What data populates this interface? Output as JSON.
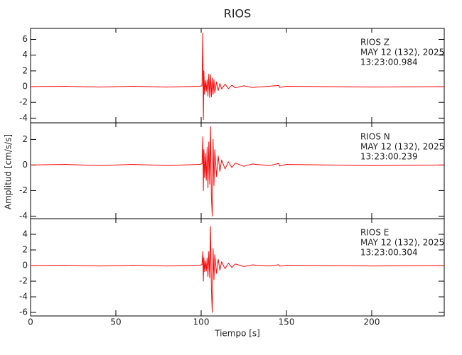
{
  "chart_data": [
    {
      "type": "line",
      "title": "RIOS",
      "annotations": [
        "RIOS   Z",
        "MAY 12 (132), 2025",
        "13:23:00.984"
      ],
      "x": [
        0,
        20,
        40,
        60,
        80,
        99,
        100.5,
        101,
        101.3,
        101.6,
        102,
        102.5,
        103,
        103.5,
        104,
        104.5,
        105,
        105.5,
        106,
        106.5,
        107,
        107.5,
        108,
        109,
        110,
        111,
        112,
        114,
        116,
        118,
        120,
        125,
        130,
        140,
        145.5,
        146,
        150,
        200,
        242.5
      ],
      "series": [
        {
          "color": "#ff0000",
          "values": [
            0,
            0.05,
            -0.05,
            0.05,
            -0.05,
            0.05,
            0.1,
            6.8,
            -4.2,
            2.0,
            -1.0,
            0.8,
            -0.6,
            0.9,
            -1.2,
            1.6,
            -1.4,
            1.5,
            -1.3,
            1.1,
            -1.0,
            0.9,
            -0.8,
            0.6,
            -0.5,
            0.4,
            -0.3,
            0.3,
            -0.25,
            0.2,
            -0.15,
            0.1,
            -0.1,
            0.05,
            0.15,
            -0.1,
            0.05,
            -0.05,
            0
          ]
        }
      ],
      "xlim": [
        0,
        242.5
      ],
      "xticks": [
        0,
        50,
        100,
        150,
        200
      ],
      "ylim": [
        -4.6,
        7.4
      ],
      "yticks": [
        -4,
        -2,
        0,
        2,
        4,
        6
      ]
    },
    {
      "type": "line",
      "ylabel": "Amplitud [cm/s/s]",
      "annotations": [
        "RIOS   N",
        "MAY 12 (132), 2025",
        "13:23:00.239"
      ],
      "x": [
        0,
        20,
        40,
        60,
        80,
        99,
        100.5,
        101,
        101.3,
        101.6,
        102,
        102.5,
        103,
        103.5,
        104,
        104.5,
        105,
        105.5,
        106,
        106.5,
        107,
        107.5,
        108,
        109,
        110,
        111,
        112,
        114,
        116,
        118,
        120,
        125,
        130,
        140,
        145.5,
        146,
        150,
        200,
        242.5
      ],
      "series": [
        {
          "color": "#ff0000",
          "values": [
            0,
            0.05,
            -0.05,
            0.05,
            -0.05,
            0.05,
            0.1,
            2.2,
            -2.0,
            1.2,
            -1.0,
            0.9,
            -1.2,
            1.4,
            -1.8,
            1.8,
            -1.5,
            3.0,
            -2.5,
            -4.0,
            2.0,
            -1.6,
            1.2,
            -0.9,
            0.7,
            -0.5,
            0.4,
            -0.3,
            0.25,
            -0.2,
            0.15,
            -0.1,
            0.08,
            -0.05,
            0.12,
            -0.08,
            0.05,
            -0.05,
            0
          ]
        }
      ],
      "xlim": [
        0,
        242.5
      ],
      "xticks": [
        0,
        50,
        100,
        150,
        200
      ],
      "ylim": [
        -4.2,
        3.3
      ],
      "yticks": [
        -4,
        -2,
        0,
        2
      ]
    },
    {
      "type": "line",
      "xlabel": "Tiempo [s]",
      "annotations": [
        "RIOS   E",
        "MAY 12 (132), 2025",
        "13:23:00.304"
      ],
      "x": [
        0,
        20,
        40,
        60,
        80,
        99,
        100.5,
        101,
        101.3,
        101.6,
        102,
        102.5,
        103,
        103.5,
        104,
        104.5,
        105,
        105.5,
        106,
        106.5,
        107,
        107.5,
        108,
        109,
        110,
        111,
        112,
        114,
        116,
        118,
        120,
        125,
        130,
        140,
        145.5,
        146,
        150,
        200,
        242.5
      ],
      "series": [
        {
          "color": "#ff0000",
          "values": [
            0,
            0.05,
            -0.05,
            0.05,
            -0.05,
            0.05,
            0.1,
            1.8,
            -2.0,
            1.0,
            -0.8,
            0.6,
            -0.7,
            1.0,
            -1.4,
            1.8,
            -1.6,
            5.0,
            -3.0,
            -6.0,
            2.2,
            -1.8,
            1.4,
            -1.0,
            0.8,
            -0.6,
            0.5,
            -0.4,
            0.3,
            -0.25,
            0.2,
            -0.12,
            0.08,
            -0.05,
            0.1,
            -0.08,
            0.05,
            -0.05,
            0
          ]
        }
      ],
      "xlim": [
        0,
        242.5
      ],
      "xticks": [
        0,
        50,
        100,
        150,
        200
      ],
      "ylim": [
        -6.45,
        6
      ],
      "yticks": [
        -6,
        -4,
        -2,
        0,
        2,
        4
      ]
    }
  ]
}
